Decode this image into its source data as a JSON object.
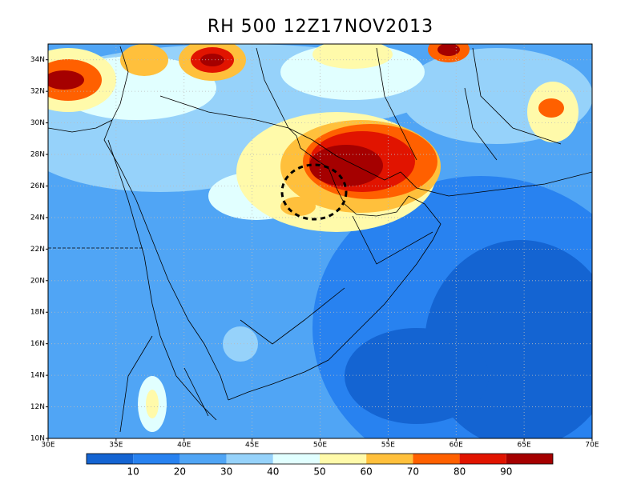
{
  "map": {
    "title": "RH 500 12Z17NOV2013",
    "xlim": [
      30,
      70
    ],
    "ylim": [
      10,
      35
    ],
    "xticks": [
      {
        "value": 30,
        "label": "30E"
      },
      {
        "value": 35,
        "label": "35E"
      },
      {
        "value": 40,
        "label": "40E"
      },
      {
        "value": 45,
        "label": "45E"
      },
      {
        "value": 50,
        "label": "50E"
      },
      {
        "value": 55,
        "label": "55E"
      },
      {
        "value": 60,
        "label": "60E"
      },
      {
        "value": 65,
        "label": "65E"
      },
      {
        "value": 70,
        "label": "70E"
      }
    ],
    "yticks": [
      {
        "value": 10,
        "label": "10N"
      },
      {
        "value": 12,
        "label": "12N"
      },
      {
        "value": 14,
        "label": "14N"
      },
      {
        "value": 16,
        "label": "16N"
      },
      {
        "value": 18,
        "label": "18N"
      },
      {
        "value": 20,
        "label": "20N"
      },
      {
        "value": 22,
        "label": "22N"
      },
      {
        "value": 24,
        "label": "24N"
      },
      {
        "value": 26,
        "label": "26N"
      },
      {
        "value": 28,
        "label": "28N"
      },
      {
        "value": 30,
        "label": "30N"
      },
      {
        "value": 32,
        "label": "32N"
      },
      {
        "value": 34,
        "label": "34N"
      }
    ],
    "grid": true,
    "colorbar": {
      "levels": [
        10,
        20,
        30,
        40,
        50,
        60,
        70,
        80,
        90
      ],
      "colors": [
        "#1464d2",
        "#2882f0",
        "#50a5f5",
        "#96d2fa",
        "#e1ffff",
        "#fffaaa",
        "#ffc03c",
        "#ff6000",
        "#e11400",
        "#a50000"
      ]
    }
  }
}
